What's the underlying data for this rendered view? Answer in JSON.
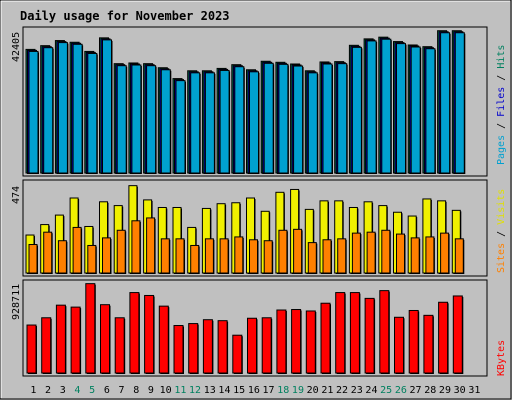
{
  "title": "Daily usage for November 2023",
  "colors": {
    "background": "#c0c0c0",
    "title": "#0000cc",
    "hits": "#00805f",
    "files": "#0000cc",
    "pages": "#00a0d0",
    "visits": "#f0f000",
    "sites": "#ff8000",
    "kbytes": "#ff0000",
    "weekend_tick": "#00805f"
  },
  "chart_data": [
    {
      "type": "bar",
      "panel": "hits-files-pages",
      "ymax_label": "42405",
      "ymax": 42405,
      "side_label": {
        "pages": "Pages",
        "files": "Files",
        "hits": "Hits",
        "sep": " / "
      },
      "categories": [
        "1",
        "2",
        "3",
        "4",
        "5",
        "6",
        "7",
        "8",
        "9",
        "10",
        "11",
        "12",
        "13",
        "14",
        "15",
        "16",
        "17",
        "18",
        "19",
        "20",
        "21",
        "22",
        "23",
        "24",
        "25",
        "26",
        "27",
        "28",
        "29",
        "30",
        "31"
      ],
      "series": [
        {
          "name": "Hits",
          "values": [
            36400,
            37500,
            39000,
            38500,
            35800,
            39800,
            32200,
            32400,
            32200,
            31000,
            27800,
            30100,
            30100,
            30800,
            31900,
            30400,
            32900,
            32600,
            32100,
            30100,
            32700,
            32800,
            37600,
            39500,
            40000,
            38700,
            37700,
            37200,
            41900,
            41900,
            null
          ]
        },
        {
          "name": "Files",
          "values": [
            36100,
            37200,
            38700,
            38200,
            35500,
            39500,
            31900,
            32100,
            31900,
            30700,
            27500,
            29800,
            29800,
            30500,
            31600,
            30100,
            32600,
            32300,
            31800,
            29800,
            32400,
            32500,
            37300,
            39200,
            39700,
            38400,
            37400,
            36900,
            41600,
            41600,
            null
          ]
        },
        {
          "name": "Pages",
          "values": [
            35800,
            36900,
            38400,
            37900,
            35200,
            39200,
            31600,
            31800,
            31600,
            30400,
            27200,
            29500,
            29500,
            30200,
            31300,
            29800,
            32300,
            32000,
            31500,
            29500,
            32100,
            32200,
            37000,
            38900,
            39400,
            38100,
            37100,
            36600,
            41300,
            41300,
            null
          ]
        }
      ]
    },
    {
      "type": "bar",
      "panel": "visits-sites",
      "ymax_label": "474",
      "ymax": 474,
      "side_label": {
        "sites": "Sites",
        "visits": "Visits",
        "sep": " / "
      },
      "categories": [
        "1",
        "2",
        "3",
        "4",
        "5",
        "6",
        "7",
        "8",
        "9",
        "10",
        "11",
        "12",
        "13",
        "14",
        "15",
        "16",
        "17",
        "18",
        "19",
        "20",
        "21",
        "22",
        "23",
        "24",
        "25",
        "26",
        "27",
        "28",
        "29",
        "30",
        "31"
      ],
      "series": [
        {
          "name": "Visits",
          "values": [
            200,
            255,
            305,
            395,
            245,
            375,
            355,
            460,
            385,
            345,
            345,
            240,
            340,
            365,
            370,
            395,
            325,
            425,
            440,
            335,
            380,
            380,
            345,
            375,
            355,
            320,
            300,
            390,
            380,
            330,
            null
          ]
        },
        {
          "name": "Sites",
          "values": [
            150,
            215,
            170,
            240,
            145,
            185,
            225,
            275,
            290,
            180,
            180,
            145,
            180,
            180,
            190,
            175,
            170,
            225,
            230,
            160,
            175,
            180,
            210,
            215,
            225,
            205,
            185,
            190,
            210,
            180,
            null
          ]
        }
      ]
    },
    {
      "type": "bar",
      "panel": "kbytes",
      "ymax_label": "928711",
      "ymax": 928711,
      "side_label": {
        "kbytes": "KBytes"
      },
      "categories": [
        "1",
        "2",
        "3",
        "4",
        "5",
        "6",
        "7",
        "8",
        "9",
        "10",
        "11",
        "12",
        "13",
        "14",
        "15",
        "16",
        "17",
        "18",
        "19",
        "20",
        "21",
        "22",
        "23",
        "24",
        "25",
        "26",
        "27",
        "28",
        "29",
        "30",
        "31"
      ],
      "series": [
        {
          "name": "KBytes",
          "values": [
            495000,
            570000,
            700000,
            680000,
            922000,
            705000,
            570000,
            830000,
            800000,
            690000,
            490000,
            510000,
            550000,
            540000,
            390000,
            565000,
            570000,
            650000,
            655000,
            640000,
            720000,
            830000,
            830000,
            770000,
            850000,
            575000,
            645000,
            595000,
            730000,
            795000,
            null
          ]
        }
      ]
    }
  ],
  "weekend_days": [
    "4",
    "5",
    "11",
    "12",
    "18",
    "19",
    "25",
    "26"
  ]
}
